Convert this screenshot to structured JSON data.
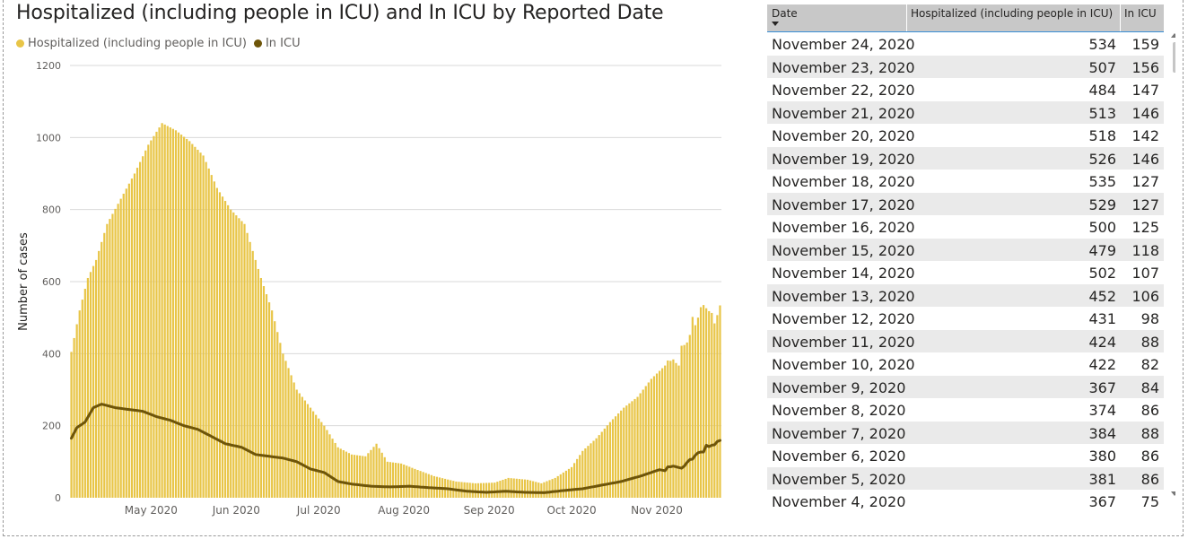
{
  "chart_data": {
    "type": "bar+line",
    "title": "Hospitalized (including people in ICU) and In ICU by Reported Date",
    "ylabel": "Number of cases",
    "xlabel": "",
    "ylim": [
      0,
      1200
    ],
    "yticks": [
      0,
      200,
      400,
      600,
      800,
      1000,
      1200
    ],
    "xtick_labels": [
      "May 2020",
      "Jun 2020",
      "Jul 2020",
      "Aug 2020",
      "Sep 2020",
      "Oct 2020",
      "Nov 2020"
    ],
    "x_start": "2020-04-02",
    "x_end": "2020-11-24",
    "legend_position": "top-left",
    "series": [
      {
        "name": "Hospitalized (including people in ICU)",
        "type": "bar",
        "color": "#E8C547",
        "anchors": [
          [
            "2020-04-02",
            405
          ],
          [
            "2020-04-05",
            520
          ],
          [
            "2020-04-08",
            610
          ],
          [
            "2020-04-11",
            660
          ],
          [
            "2020-04-15",
            760
          ],
          [
            "2020-04-20",
            830
          ],
          [
            "2020-04-25",
            900
          ],
          [
            "2020-04-30",
            980
          ],
          [
            "2020-05-05",
            1040
          ],
          [
            "2020-05-10",
            1020
          ],
          [
            "2020-05-15",
            990
          ],
          [
            "2020-05-20",
            950
          ],
          [
            "2020-05-25",
            860
          ],
          [
            "2020-05-30",
            800
          ],
          [
            "2020-06-04",
            760
          ],
          [
            "2020-06-10",
            610
          ],
          [
            "2020-06-14",
            520
          ],
          [
            "2020-06-18",
            400
          ],
          [
            "2020-06-23",
            300
          ],
          [
            "2020-06-28",
            250
          ],
          [
            "2020-07-03",
            200
          ],
          [
            "2020-07-08",
            140
          ],
          [
            "2020-07-13",
            120
          ],
          [
            "2020-07-18",
            115
          ],
          [
            "2020-07-22",
            150
          ],
          [
            "2020-07-26",
            100
          ],
          [
            "2020-07-31",
            95
          ],
          [
            "2020-08-05",
            80
          ],
          [
            "2020-08-12",
            60
          ],
          [
            "2020-08-20",
            45
          ],
          [
            "2020-08-27",
            40
          ],
          [
            "2020-09-03",
            42
          ],
          [
            "2020-09-08",
            55
          ],
          [
            "2020-09-15",
            50
          ],
          [
            "2020-09-20",
            40
          ],
          [
            "2020-09-25",
            55
          ],
          [
            "2020-10-01",
            85
          ],
          [
            "2020-10-05",
            130
          ],
          [
            "2020-10-10",
            165
          ],
          [
            "2020-10-15",
            210
          ],
          [
            "2020-10-20",
            250
          ],
          [
            "2020-10-25",
            280
          ],
          [
            "2020-10-30",
            330
          ],
          [
            "2020-11-04",
            367
          ],
          [
            "2020-11-05",
            381
          ],
          [
            "2020-11-06",
            380
          ],
          [
            "2020-11-07",
            384
          ],
          [
            "2020-11-08",
            374
          ],
          [
            "2020-11-09",
            367
          ],
          [
            "2020-11-10",
            422
          ],
          [
            "2020-11-11",
            424
          ],
          [
            "2020-11-12",
            431
          ],
          [
            "2020-11-13",
            452
          ],
          [
            "2020-11-14",
            502
          ],
          [
            "2020-11-15",
            479
          ],
          [
            "2020-11-16",
            500
          ],
          [
            "2020-11-17",
            529
          ],
          [
            "2020-11-18",
            535
          ],
          [
            "2020-11-19",
            526
          ],
          [
            "2020-11-20",
            518
          ],
          [
            "2020-11-21",
            513
          ],
          [
            "2020-11-22",
            484
          ],
          [
            "2020-11-23",
            507
          ],
          [
            "2020-11-24",
            534
          ]
        ]
      },
      {
        "name": "In ICU",
        "type": "line",
        "color": "#6E5509",
        "anchors": [
          [
            "2020-04-02",
            165
          ],
          [
            "2020-04-04",
            195
          ],
          [
            "2020-04-07",
            210
          ],
          [
            "2020-04-10",
            250
          ],
          [
            "2020-04-13",
            260
          ],
          [
            "2020-04-18",
            250
          ],
          [
            "2020-04-23",
            245
          ],
          [
            "2020-04-28",
            240
          ],
          [
            "2020-05-03",
            225
          ],
          [
            "2020-05-08",
            215
          ],
          [
            "2020-05-13",
            200
          ],
          [
            "2020-05-18",
            190
          ],
          [
            "2020-05-23",
            170
          ],
          [
            "2020-05-28",
            150
          ],
          [
            "2020-06-03",
            140
          ],
          [
            "2020-06-08",
            120
          ],
          [
            "2020-06-13",
            115
          ],
          [
            "2020-06-18",
            110
          ],
          [
            "2020-06-23",
            100
          ],
          [
            "2020-06-28",
            80
          ],
          [
            "2020-07-03",
            70
          ],
          [
            "2020-07-08",
            45
          ],
          [
            "2020-07-13",
            38
          ],
          [
            "2020-07-20",
            32
          ],
          [
            "2020-07-27",
            30
          ],
          [
            "2020-08-03",
            32
          ],
          [
            "2020-08-10",
            28
          ],
          [
            "2020-08-17",
            25
          ],
          [
            "2020-08-24",
            18
          ],
          [
            "2020-08-31",
            15
          ],
          [
            "2020-09-07",
            18
          ],
          [
            "2020-09-14",
            15
          ],
          [
            "2020-09-21",
            14
          ],
          [
            "2020-09-28",
            20
          ],
          [
            "2020-10-05",
            25
          ],
          [
            "2020-10-12",
            35
          ],
          [
            "2020-10-19",
            45
          ],
          [
            "2020-10-26",
            60
          ],
          [
            "2020-11-02",
            78
          ],
          [
            "2020-11-04",
            75
          ],
          [
            "2020-11-05",
            86
          ],
          [
            "2020-11-06",
            86
          ],
          [
            "2020-11-07",
            88
          ],
          [
            "2020-11-08",
            86
          ],
          [
            "2020-11-09",
            84
          ],
          [
            "2020-11-10",
            82
          ],
          [
            "2020-11-11",
            88
          ],
          [
            "2020-11-12",
            98
          ],
          [
            "2020-11-13",
            106
          ],
          [
            "2020-11-14",
            107
          ],
          [
            "2020-11-15",
            118
          ],
          [
            "2020-11-16",
            125
          ],
          [
            "2020-11-17",
            127
          ],
          [
            "2020-11-18",
            127
          ],
          [
            "2020-11-19",
            146
          ],
          [
            "2020-11-20",
            142
          ],
          [
            "2020-11-21",
            146
          ],
          [
            "2020-11-22",
            147
          ],
          [
            "2020-11-23",
            156
          ],
          [
            "2020-11-24",
            159
          ]
        ]
      }
    ]
  },
  "table": {
    "headers": {
      "date": "Date",
      "hospitalized": "Hospitalized (including people in ICU)",
      "icu": "In ICU"
    },
    "sort": "date-descending",
    "rows": [
      {
        "date": "November 24, 2020",
        "hospitalized": "534",
        "icu": "159"
      },
      {
        "date": "November 23, 2020",
        "hospitalized": "507",
        "icu": "156"
      },
      {
        "date": "November 22, 2020",
        "hospitalized": "484",
        "icu": "147"
      },
      {
        "date": "November 21, 2020",
        "hospitalized": "513",
        "icu": "146"
      },
      {
        "date": "November 20, 2020",
        "hospitalized": "518",
        "icu": "142"
      },
      {
        "date": "November 19, 2020",
        "hospitalized": "526",
        "icu": "146"
      },
      {
        "date": "November 18, 2020",
        "hospitalized": "535",
        "icu": "127"
      },
      {
        "date": "November 17, 2020",
        "hospitalized": "529",
        "icu": "127"
      },
      {
        "date": "November 16, 2020",
        "hospitalized": "500",
        "icu": "125"
      },
      {
        "date": "November 15, 2020",
        "hospitalized": "479",
        "icu": "118"
      },
      {
        "date": "November 14, 2020",
        "hospitalized": "502",
        "icu": "107"
      },
      {
        "date": "November 13, 2020",
        "hospitalized": "452",
        "icu": "106"
      },
      {
        "date": "November 12, 2020",
        "hospitalized": "431",
        "icu": "98"
      },
      {
        "date": "November 11, 2020",
        "hospitalized": "424",
        "icu": "88"
      },
      {
        "date": "November 10, 2020",
        "hospitalized": "422",
        "icu": "82"
      },
      {
        "date": "November 9, 2020",
        "hospitalized": "367",
        "icu": "84"
      },
      {
        "date": "November 8, 2020",
        "hospitalized": "374",
        "icu": "86"
      },
      {
        "date": "November 7, 2020",
        "hospitalized": "384",
        "icu": "88"
      },
      {
        "date": "November 6, 2020",
        "hospitalized": "380",
        "icu": "86"
      },
      {
        "date": "November 5, 2020",
        "hospitalized": "381",
        "icu": "86"
      },
      {
        "date": "November 4, 2020",
        "hospitalized": "367",
        "icu": "75"
      }
    ]
  },
  "colors": {
    "bar": "#E8C547",
    "line": "#6E5509",
    "header_bg": "#C8C8C8",
    "row_alt": "#EAEAEA"
  }
}
